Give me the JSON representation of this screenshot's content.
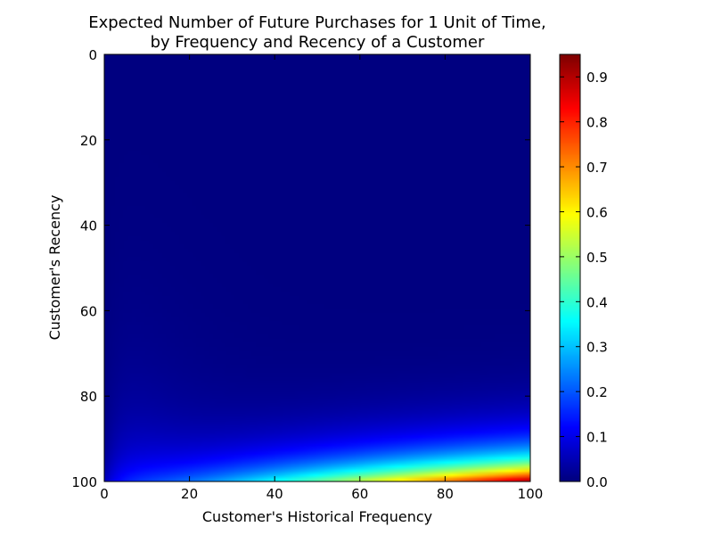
{
  "chart_data": {
    "type": "heatmap",
    "title": "Expected Number of Future Purchases for 1 Unit of Time,\nby Frequency and Recency of a Customer",
    "xlabel": "Customer's Historical Frequency",
    "ylabel": "Customer's Recency",
    "xlim": [
      0,
      100
    ],
    "ylim": [
      100,
      0
    ],
    "y_axis_inverted": true,
    "x_ticks": [
      0,
      20,
      40,
      60,
      80,
      100
    ],
    "y_ticks": [
      0,
      20,
      40,
      60,
      80,
      100
    ],
    "colormap": "jet",
    "colorbar": {
      "min": 0.0,
      "max": 0.95,
      "ticks": [
        0.0,
        0.1,
        0.2,
        0.3,
        0.4,
        0.5,
        0.6,
        0.7,
        0.8,
        0.9
      ],
      "tick_labels": [
        "0.0",
        "0.1",
        "0.2",
        "0.3",
        "0.4",
        "0.5",
        "0.6",
        "0.7",
        "0.8",
        "0.9"
      ]
    },
    "grid": false,
    "sample_values": [
      {
        "frequency": 0,
        "recency": 100,
        "value": 0.05
      },
      {
        "frequency": 20,
        "recency": 100,
        "value": 0.2
      },
      {
        "frequency": 40,
        "recency": 100,
        "value": 0.4
      },
      {
        "frequency": 60,
        "recency": 100,
        "value": 0.55
      },
      {
        "frequency": 80,
        "recency": 100,
        "value": 0.75
      },
      {
        "frequency": 100,
        "recency": 100,
        "value": 0.95
      },
      {
        "frequency": 60,
        "recency": 94,
        "value": 0.3
      },
      {
        "frequency": 20,
        "recency": 90,
        "value": 0.1
      },
      {
        "frequency": 5,
        "recency": 70,
        "value": 0.05
      },
      {
        "frequency": 50,
        "recency": 50,
        "value": 0.0
      },
      {
        "frequency": 100,
        "recency": 0,
        "value": 0.0
      }
    ]
  }
}
